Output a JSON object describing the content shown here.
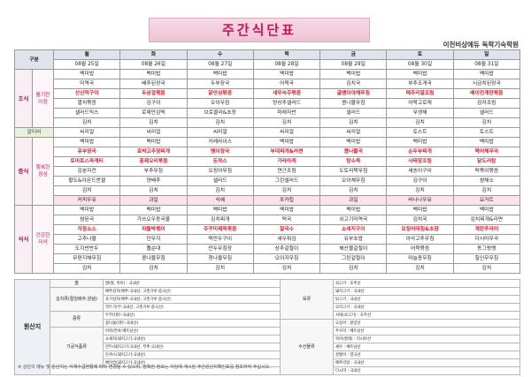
{
  "header": {
    "title": "주간식단표",
    "academy": "이천비상에듀 독학기숙학원"
  },
  "table": {
    "corner": "구분",
    "days": [
      "월",
      "화",
      "수",
      "목",
      "금",
      "토",
      "일"
    ],
    "dates": [
      "08월 25일",
      "08월 26일",
      "08월 27일",
      "08월 28일",
      "08월 29일",
      "08월 30일",
      "08월 31일"
    ],
    "sections": [
      {
        "name": "조식",
        "subtitle": "활기찬 아침",
        "rows": [
          {
            "cells": [
              "백미밥",
              "백미밥",
              "백미밥",
              "백미밥",
              "백미밥",
              "백미밥",
              "백미밥"
            ]
          },
          {
            "cells": [
              "미역국",
              "배추된장국",
              "두부장국",
              "어묵국",
              "김치국",
              "부추조개국",
              "시금치된장국"
            ]
          },
          {
            "red": true,
            "cells": [
              "산산적구이",
              "두삼겹볶음",
              "닭안심볶음",
              "새우숙주볶음",
              "골뱅이야채무침",
              "메추리알조림",
              "베이컨계란볶음"
            ]
          },
          {
            "cells": [
              "멸치볶음",
              "김구이",
              "오이무침",
              "양상추샐러드",
              "콩나물무침",
              "어묵고로케",
              "감자조림"
            ]
          },
          {
            "cells": [
              "샐러드믹스",
              "로제만감떡",
              "브로콜리&초장",
              "파래자반",
              "샐러드",
              "무생채",
              "샐러드"
            ]
          },
          {
            "cells": [
              "김치",
              "김치",
              "김치",
              "김치",
              "김치",
              "김치",
              "김치"
            ]
          }
        ],
        "extra": {
          "label": "알티비",
          "cells": [
            "씨리얼",
            "씨리얼",
            "씨리얼",
            "씨리얼",
            "씨리얼",
            "토스트",
            "토스트"
          ]
        }
      },
      {
        "name": "중식",
        "subtitle": "행복한 점심",
        "rows": [
          {
            "cells": [
              "백미밥",
              "백미밥",
              "카레라이스",
              "백미밥",
              "백미밥",
              "백미밥",
              "백미밥"
            ]
          },
          {
            "red": true,
            "cells": [
              "유부장국",
              "호박고추장찌개",
              "팽이장국",
              "부대찌개&라면",
              "콩나물국",
              "순두부찌개",
              "북어채무국"
            ]
          },
          {
            "red": true,
            "cells": [
              "토마토스파게티",
              "훈제오리볶음",
              "돈까스",
              "가라아게",
              "탕수육",
              "사태장조림",
              "닭도리탕"
            ]
          },
          {
            "cells": [
              "김분자전",
              "부추무침",
              "오징어무침",
              "연근조림",
              "도토리묵무침",
              "새송이구이",
              "떡볶이볶음"
            ]
          },
          {
            "cells": [
              "황도&아몬드앤젤",
              "양배추",
              "샐러드",
              "그린샐러드",
              "오이채무침",
              "김구이",
              "쌈채소"
            ]
          },
          {
            "cells": [
              "김치",
              "김치",
              "김치",
              "김치",
              "김치",
              "김치",
              "김치"
            ]
          },
          {
            "shade": true,
            "cells": [
              "커피우유",
              "과일",
              "식혜",
              "포카칩",
              "과일",
              "바나나우유",
              "요거트"
            ]
          }
        ]
      },
      {
        "name": "석식",
        "subtitle": "건강한 저녁",
        "rows": [
          {
            "cells": [
              "백미밥",
              "백미밥",
              "백미밥",
              "백미밥",
              "백미밥",
              "백미밥",
              "백미밥"
            ]
          },
          {
            "cells": [
              "쌈된국",
              "가쓰오우동국물",
              "김치찌개",
              "떡국",
              "쇠고기미역국",
              "김치국",
              "김치찌개&라면"
            ]
          },
          {
            "red": true,
            "cells": [
              "자장소스",
              "차돌박볶이",
              "주꾸미제육볶음",
              "찰국수",
              "소세지구이",
              "오징어데침&초장",
              "계란후라이"
            ]
          },
          {
            "cells": [
              "고추나물",
              "단무지",
              "떡만두구이",
              "새우튀김",
              "유부초밥",
              "아삭고추무침",
              "다시마무국"
            ]
          },
          {
            "cells": [
              "도지반반두",
              "쫄순대",
              "만두무침장",
              "상추겉절이",
              "해산물겉절이",
              "어묵볶음",
              "동그랑땡"
            ]
          },
          {
            "cells": [
              "무편지채무침",
              "콩나물무침",
              "청나물무침",
              "오이지무침",
              "그린겉절이",
              "마늘종무침",
              "칠인무무침"
            ]
          },
          {
            "cells": [
              "김치",
              "김치",
              "김치",
              "김치",
              "김치",
              "김치",
              "김치"
            ]
          }
        ]
      }
    ]
  },
  "origin": {
    "label": "원산지",
    "left": [
      {
        "category": "쌀",
        "items": [
          "쌀(쌀, 흑미) : 국내산"
        ]
      },
      {
        "category": "김치류(절임배추,양념)",
        "items": [
          "배추김치(배추:국내산, 고춧가루:중국산)",
          "포기김치(배추:국내산, 고춧가루:중국산)",
          "깍두기(무:국내산, 고춧가루:중국산)"
        ]
      },
      {
        "category": "콩류",
        "items": [
          "두부(대두:국내산)",
          "콩나물(대두:국내산)"
        ]
      },
      {
        "category": "가공식품류",
        "items": [
          "어묵(연육:베트남산)",
          "소세지(돼지고기:국내산)",
          "만두(돼지고기:국내산, 부추:국내산)",
          "돈까스(돼지고기:국내산)",
          "베이컨(돼지고기:국내산)"
        ]
      }
    ],
    "right": [
      {
        "category": "육류",
        "items": [
          "쇠고기 : 호주산",
          "돼지고기 : 국내산",
          "닭고기 : 국내산",
          "오리고기 : 국내산",
          "사태(쇠고기) : 호주산"
        ]
      },
      {
        "category": "수산물류",
        "items": [
          "오징어 : 원양산",
          "주꾸미 : 베트남산",
          "북어(명태) : 러시아산",
          "새우 : 베트남산",
          "골뱅이 : 영국산",
          "메추리알 : 국내산",
          "다시마 : 국내산"
        ]
      }
    ]
  },
  "footnote": "※ 상단의 메뉴 및 원산지는 식재수급현황에 따라 변경될 수 있으며, 정확한 정보는 식당에 게시된 주간원산지확인표를 참조하여 주십시오."
}
